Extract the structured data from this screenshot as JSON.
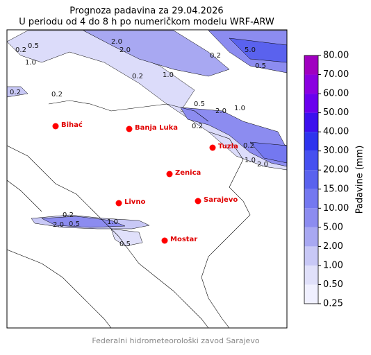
{
  "title": [
    "Prognoza padavina za 29.04.2026",
    "U periodu od 4 do 8 h po numeričkom modelu WRF-ARW"
  ],
  "cities": [
    "Bihać",
    "Banja Luka",
    "Tuzla",
    "Zenica",
    "Livno",
    "Sarajevo",
    "Mostar"
  ],
  "contour_labels": [
    "0.5",
    "0.2",
    "1.0",
    "2.0",
    "0.2",
    "1.0",
    "2.0",
    "5.0",
    "0.5",
    "0.2",
    "0.2",
    "0.2",
    "0.5",
    "1.0",
    "2.0",
    "0.2",
    "0.2",
    "1.0",
    "2.0",
    "0.2",
    "0.5",
    "1.0",
    "2.0",
    "0.5"
  ],
  "colorbar": {
    "label": "Padavine (mm)",
    "ticks": [
      {
        "value": 0.25,
        "label": "0.25"
      },
      {
        "value": 0.5,
        "label": "0.50"
      },
      {
        "value": 1,
        "label": "1.00"
      },
      {
        "value": 2,
        "label": "2.00"
      },
      {
        "value": 5,
        "label": "5.00"
      },
      {
        "value": 10,
        "label": "10.00"
      },
      {
        "value": 15,
        "label": "15.00"
      },
      {
        "value": 20,
        "label": "20.00"
      },
      {
        "value": 30,
        "label": "30.00"
      },
      {
        "value": 40,
        "label": "40.00"
      },
      {
        "value": 50,
        "label": "50.00"
      },
      {
        "value": 60,
        "label": "60.00"
      },
      {
        "value": 70,
        "label": "70.00"
      },
      {
        "value": 80,
        "label": "80.00"
      }
    ],
    "colors": [
      "#f0f0ff",
      "#e0e0fa",
      "#c8c8f6",
      "#a8a8f2",
      "#8c8cf0",
      "#7478f0",
      "#5a62ee",
      "#4650f0",
      "#2e34ee",
      "#3c10ee",
      "#6a00ee",
      "#8a00e0",
      "#a000c0"
    ]
  },
  "footer": "Federalni hidrometeorološki zavod Sarajevo"
}
